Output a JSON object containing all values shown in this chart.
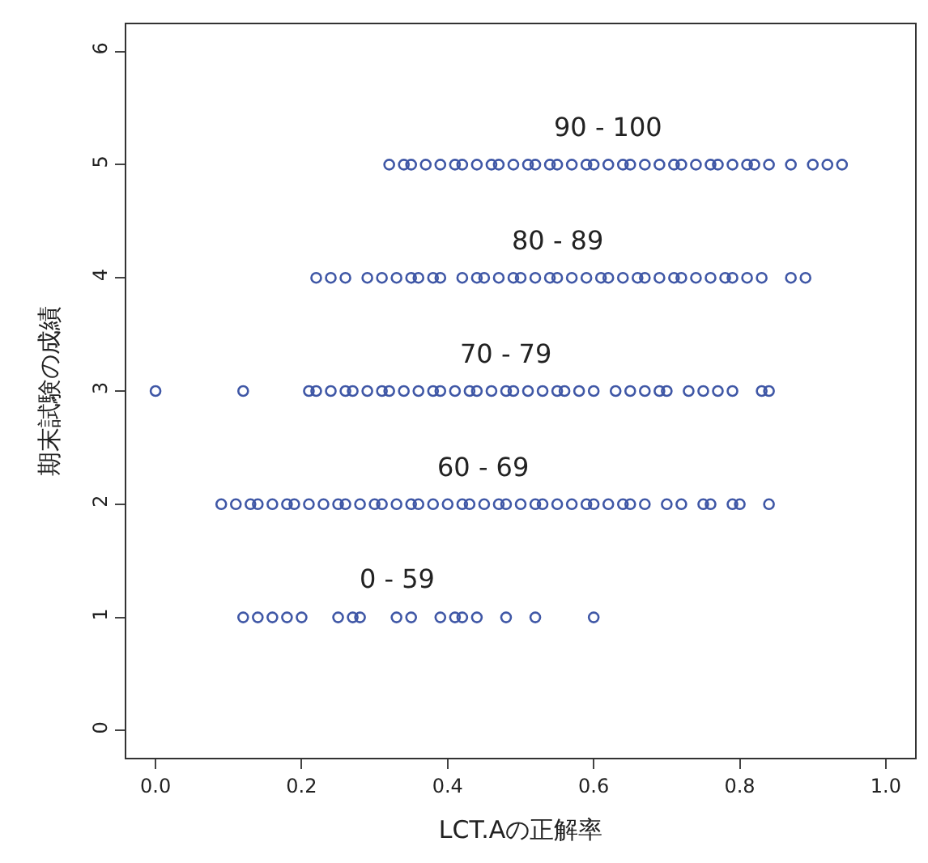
{
  "chart_data": {
    "type": "scatter",
    "xlabel": "LCT.Aの正解率",
    "ylabel": "期末試験の成績",
    "xlim": [
      -0.04,
      1.04
    ],
    "xticks": [
      {
        "value": 0,
        "label": "0.0"
      },
      0.2,
      0.4,
      0.6,
      0.8,
      {
        "value": 1,
        "label": "1.0"
      }
    ],
    "ylim": [
      -0.24,
      6.24
    ],
    "yticks": [
      0,
      1,
      2,
      3,
      4,
      5,
      6
    ],
    "marker": "circle",
    "series": [
      {
        "color": "#3f57a6",
        "x": [
          0.32,
          0.34,
          0.35,
          0.37,
          0.39,
          0.41,
          0.42,
          0.44,
          0.46,
          0.47,
          0.49,
          0.51,
          0.52,
          0.54,
          0.55,
          0.57,
          0.59,
          0.6,
          0.62,
          0.64,
          0.65,
          0.67,
          0.69,
          0.71,
          0.72,
          0.74,
          0.76,
          0.77,
          0.79,
          0.81,
          0.82,
          0.84,
          0.87,
          0.9,
          0.92,
          0.94
        ],
        "values": [
          5,
          5,
          5,
          5,
          5,
          5,
          5,
          5,
          5,
          5,
          5,
          5,
          5,
          5,
          5,
          5,
          5,
          5,
          5,
          5,
          5,
          5,
          5,
          5,
          5,
          5,
          5,
          5,
          5,
          5,
          5,
          5,
          5,
          5,
          5,
          5
        ]
      },
      {
        "color": "#3f57a6",
        "x": [
          0.22,
          0.24,
          0.26,
          0.29,
          0.31,
          0.33,
          0.35,
          0.36,
          0.38,
          0.39,
          0.42,
          0.44,
          0.45,
          0.47,
          0.49,
          0.5,
          0.52,
          0.54,
          0.55,
          0.57,
          0.59,
          0.61,
          0.62,
          0.64,
          0.66,
          0.67,
          0.69,
          0.71,
          0.72,
          0.74,
          0.76,
          0.78,
          0.79,
          0.81,
          0.83,
          0.87,
          0.89
        ],
        "values": [
          4,
          4,
          4,
          4,
          4,
          4,
          4,
          4,
          4,
          4,
          4,
          4,
          4,
          4,
          4,
          4,
          4,
          4,
          4,
          4,
          4,
          4,
          4,
          4,
          4,
          4,
          4,
          4,
          4,
          4,
          4,
          4,
          4,
          4,
          4,
          4,
          4
        ]
      },
      {
        "color": "#3f57a6",
        "x": [
          0.0,
          0.12,
          0.21,
          0.22,
          0.24,
          0.26,
          0.27,
          0.29,
          0.31,
          0.32,
          0.34,
          0.36,
          0.38,
          0.39,
          0.41,
          0.43,
          0.44,
          0.46,
          0.48,
          0.49,
          0.51,
          0.53,
          0.55,
          0.56,
          0.58,
          0.6,
          0.63,
          0.65,
          0.67,
          0.69,
          0.7,
          0.73,
          0.75,
          0.77,
          0.79,
          0.83,
          0.84
        ],
        "values": [
          3,
          3,
          3,
          3,
          3,
          3,
          3,
          3,
          3,
          3,
          3,
          3,
          3,
          3,
          3,
          3,
          3,
          3,
          3,
          3,
          3,
          3,
          3,
          3,
          3,
          3,
          3,
          3,
          3,
          3,
          3,
          3,
          3,
          3,
          3,
          3,
          3
        ]
      },
      {
        "color": "#3f57a6",
        "x": [
          0.09,
          0.11,
          0.13,
          0.14,
          0.16,
          0.18,
          0.19,
          0.21,
          0.23,
          0.25,
          0.26,
          0.28,
          0.3,
          0.31,
          0.33,
          0.35,
          0.36,
          0.38,
          0.4,
          0.42,
          0.43,
          0.45,
          0.47,
          0.48,
          0.5,
          0.52,
          0.53,
          0.55,
          0.57,
          0.59,
          0.6,
          0.62,
          0.64,
          0.65,
          0.67,
          0.7,
          0.72,
          0.75,
          0.76,
          0.79,
          0.8,
          0.84
        ],
        "values": [
          2,
          2,
          2,
          2,
          2,
          2,
          2,
          2,
          2,
          2,
          2,
          2,
          2,
          2,
          2,
          2,
          2,
          2,
          2,
          2,
          2,
          2,
          2,
          2,
          2,
          2,
          2,
          2,
          2,
          2,
          2,
          2,
          2,
          2,
          2,
          2,
          2,
          2,
          2,
          2,
          2,
          2
        ]
      },
      {
        "color": "#3f57a6",
        "x": [
          0.12,
          0.14,
          0.16,
          0.18,
          0.2,
          0.25,
          0.27,
          0.28,
          0.33,
          0.35,
          0.39,
          0.41,
          0.42,
          0.44,
          0.48,
          0.52,
          0.6
        ],
        "values": [
          1,
          1,
          1,
          1,
          1,
          1,
          1,
          1,
          1,
          1,
          1,
          1,
          1,
          1,
          1,
          1,
          1
        ]
      }
    ],
    "annotations": [
      "90 - 100",
      "80 - 89",
      "70 - 79",
      "60 - 69",
      "0 - 59"
    ]
  }
}
